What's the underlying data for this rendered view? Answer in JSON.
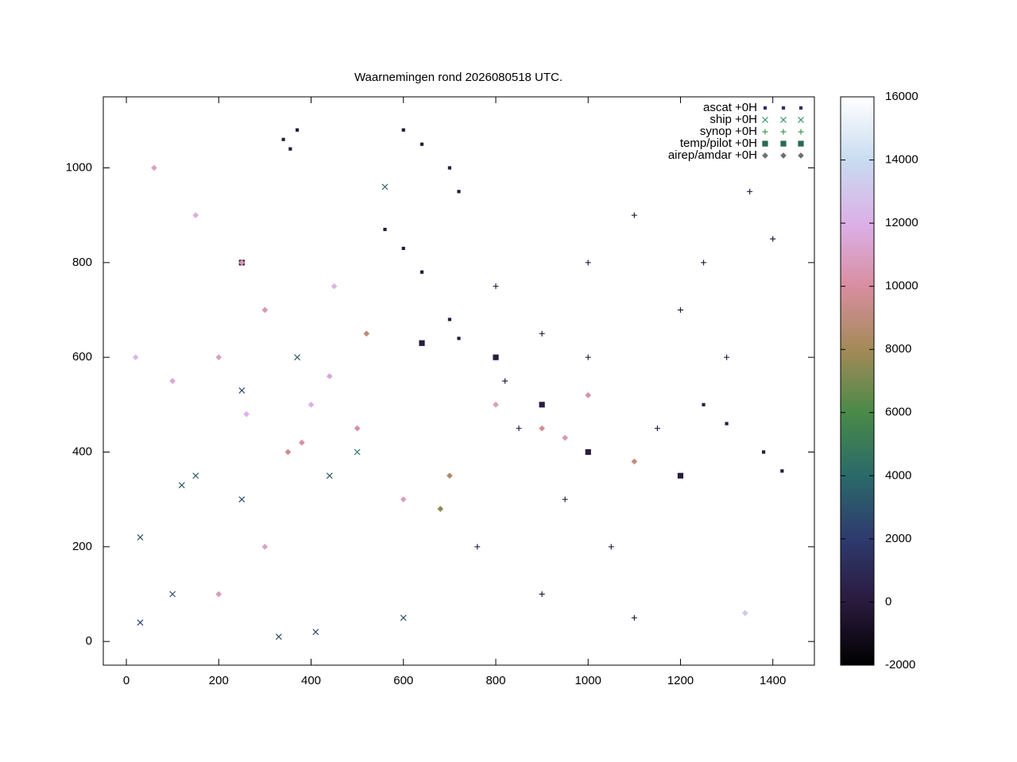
{
  "chart_data": {
    "type": "scatter",
    "title": "Waarnemingen rond 2026080518 UTC.",
    "xlim": [
      -50,
      1490
    ],
    "ylim": [
      -50,
      1150
    ],
    "xticks": [
      0,
      200,
      400,
      600,
      800,
      1000,
      1200,
      1400
    ],
    "yticks": [
      0,
      200,
      400,
      600,
      800,
      1000
    ],
    "cblim": [
      -2000,
      16000
    ],
    "cbticks": [
      -2000,
      0,
      2000,
      4000,
      6000,
      8000,
      10000,
      12000,
      14000,
      16000
    ],
    "palette": [
      "#000000",
      "#2a1a3d",
      "#2f3a6e",
      "#2a6a6a",
      "#4a8a48",
      "#a48a58",
      "#d88ea0",
      "#dcb0e8",
      "#c8dcf0",
      "#ffffff"
    ],
    "legend": "top-right",
    "series": [
      {
        "name": "ascat +0H",
        "marker": "dot",
        "color": "#2f2f6e",
        "x": [
          370,
          340,
          355,
          600,
          640,
          700,
          720,
          560,
          600,
          640,
          700,
          720,
          1250,
          1300,
          1380,
          1420
        ],
        "y": [
          1080,
          1060,
          1040,
          1080,
          1050,
          1000,
          950,
          870,
          830,
          780,
          680,
          640,
          500,
          460,
          400,
          360
        ],
        "z": [
          0,
          0,
          0,
          0,
          0,
          0,
          0,
          0,
          0,
          0,
          0,
          0,
          0,
          0,
          0,
          0
        ]
      },
      {
        "name": "ship +0H",
        "marker": "cross",
        "color": "#3a8a70",
        "x": [
          30,
          100,
          150,
          250,
          440,
          500,
          600,
          250,
          370,
          30,
          120,
          330,
          410,
          560
        ],
        "y": [
          220,
          100,
          350,
          300,
          350,
          400,
          50,
          530,
          600,
          40,
          330,
          10,
          20,
          960
        ],
        "z": [
          3000,
          2500,
          3500,
          2800,
          3200,
          4000,
          3000,
          2600,
          3400,
          2200,
          3100,
          2900,
          2700,
          3300
        ]
      },
      {
        "name": "synop +0H",
        "marker": "plus",
        "color": "#3a9a50",
        "x": [
          800,
          900,
          1000,
          1100,
          1200,
          1300,
          850,
          950,
          1050,
          1350,
          1400,
          760,
          900,
          1100,
          1150,
          1250,
          820,
          1000
        ],
        "y": [
          750,
          650,
          800,
          900,
          700,
          600,
          450,
          300,
          200,
          950,
          850,
          200,
          100,
          50,
          450,
          800,
          550,
          600
        ],
        "z": [
          200,
          300,
          150,
          100,
          250,
          400,
          500,
          350,
          200,
          100,
          150,
          600,
          300,
          250,
          200,
          100,
          300,
          250
        ]
      },
      {
        "name": "temp/pilot +0H",
        "marker": "square",
        "color": "#2a6a50",
        "x": [
          250,
          800,
          900,
          1000,
          1200,
          640
        ],
        "y": [
          800,
          600,
          500,
          400,
          350,
          630
        ],
        "z": [
          0,
          100,
          200,
          150,
          100,
          50
        ]
      },
      {
        "name": "airep/amdar +0H",
        "marker": "diamond",
        "color": "#707070",
        "x": [
          200,
          300,
          400,
          100,
          500,
          350,
          600,
          250,
          150,
          450,
          800,
          900,
          1000,
          700,
          300,
          200,
          20,
          60,
          520,
          380,
          260,
          440,
          680,
          950,
          1100,
          1340
        ],
        "y": [
          600,
          700,
          500,
          550,
          450,
          400,
          300,
          800,
          900,
          750,
          500,
          450,
          520,
          350,
          200,
          100,
          600,
          1000,
          650,
          420,
          480,
          560,
          280,
          430,
          380,
          60
        ],
        "z": [
          11000,
          10500,
          12000,
          11500,
          10000,
          9500,
          11000,
          10500,
          11800,
          12200,
          10800,
          9800,
          10200,
          8500,
          11200,
          10800,
          12500,
          11000,
          9000,
          10000,
          12000,
          11500,
          7500,
          10600,
          9200,
          13000
        ]
      }
    ]
  }
}
